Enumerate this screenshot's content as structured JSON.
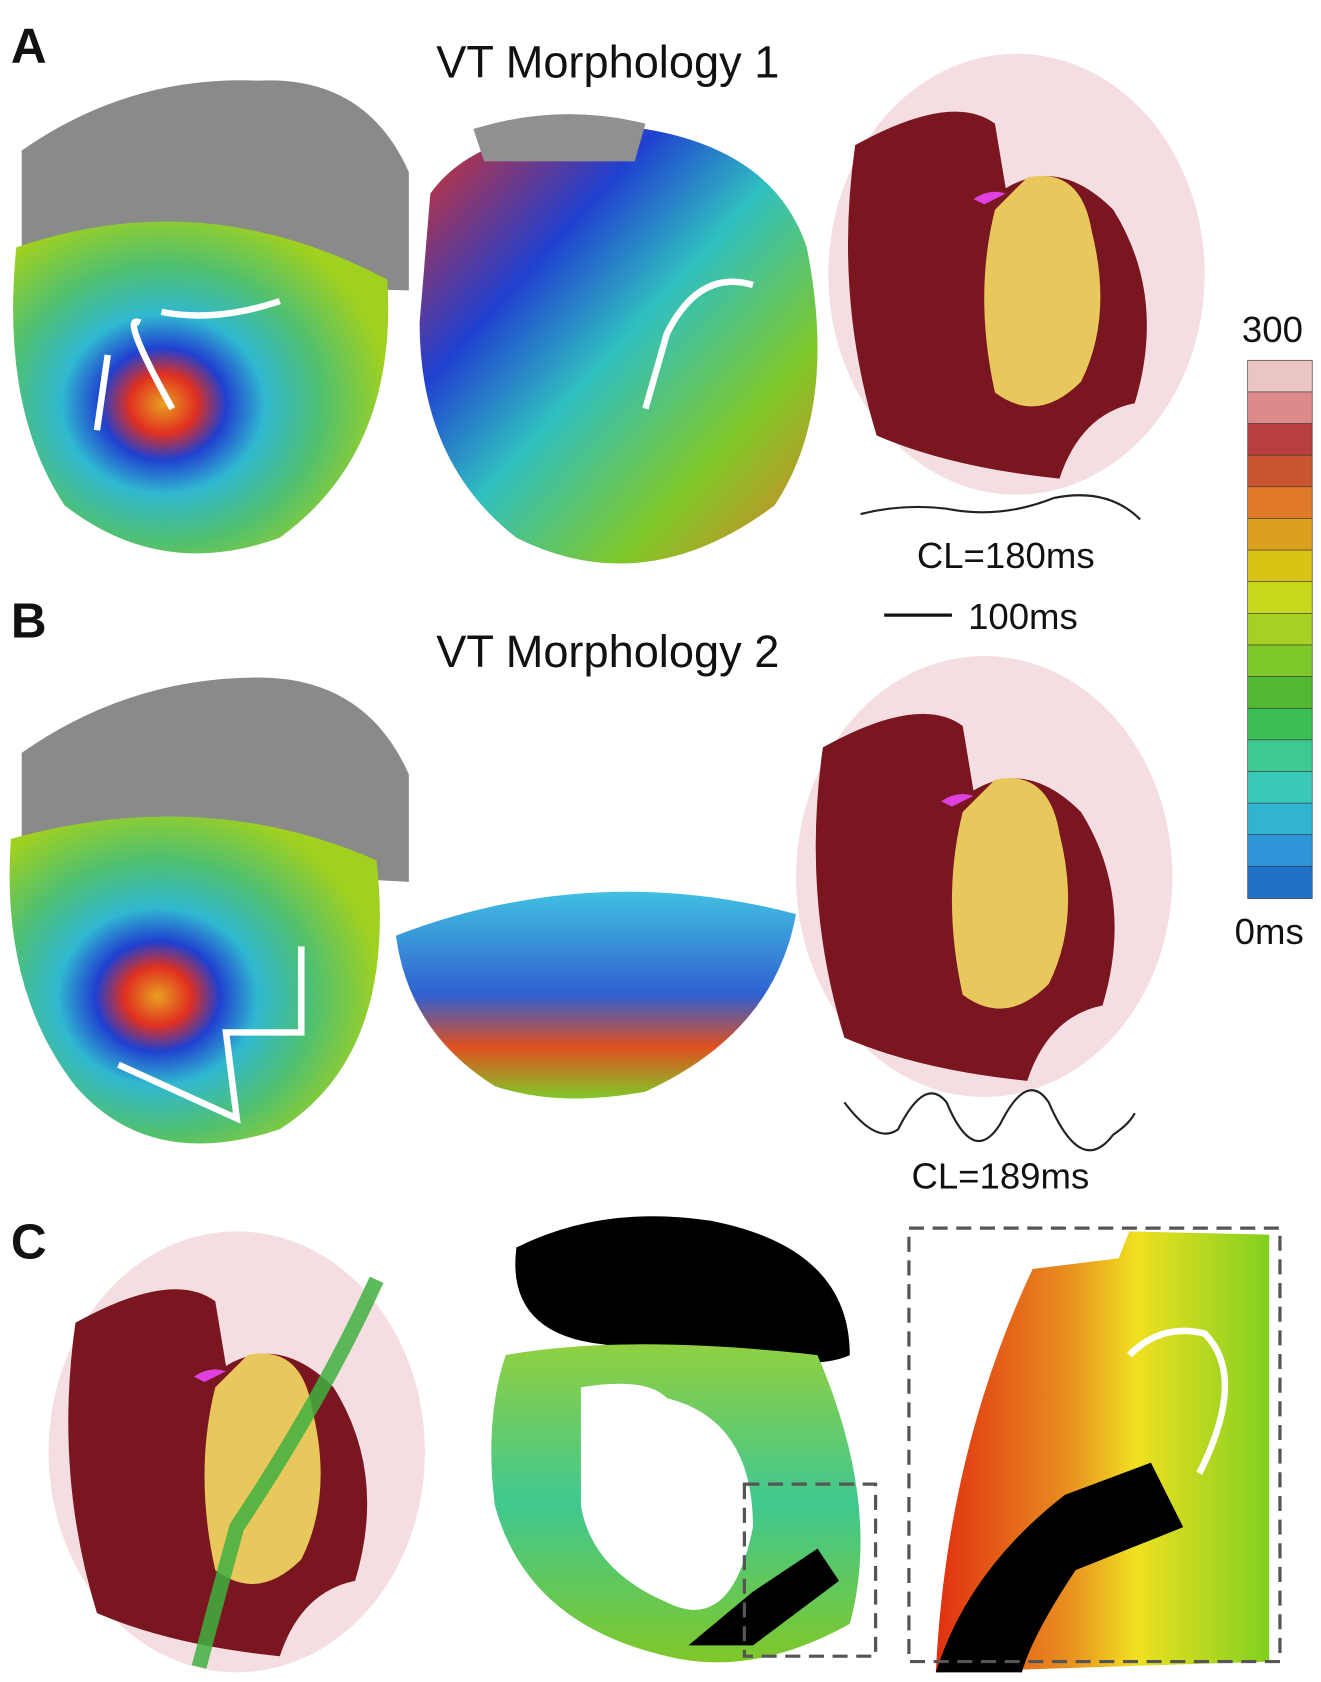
{
  "panels": [
    {
      "label": "A",
      "title": "VT Morphology 1",
      "cycle_length": "CL=180ms"
    },
    {
      "label": "B",
      "title": "VT Morphology 2",
      "cycle_length": "CL=189ms"
    },
    {
      "label": "C"
    }
  ],
  "scale_bar": "100ms",
  "colorbar": {
    "max_label": "300",
    "min_label": "0ms",
    "colors": [
      "#ebc4c4",
      "#dc8a8a",
      "#b8403e",
      "#c85530",
      "#e07a28",
      "#dca020",
      "#d8c414",
      "#c6d81c",
      "#a6d024",
      "#7ec82a",
      "#52b832",
      "#3cbe54",
      "#3ec892",
      "#3cc8b8",
      "#30b4d2",
      "#2e96d8",
      "#2072c8"
    ]
  }
}
